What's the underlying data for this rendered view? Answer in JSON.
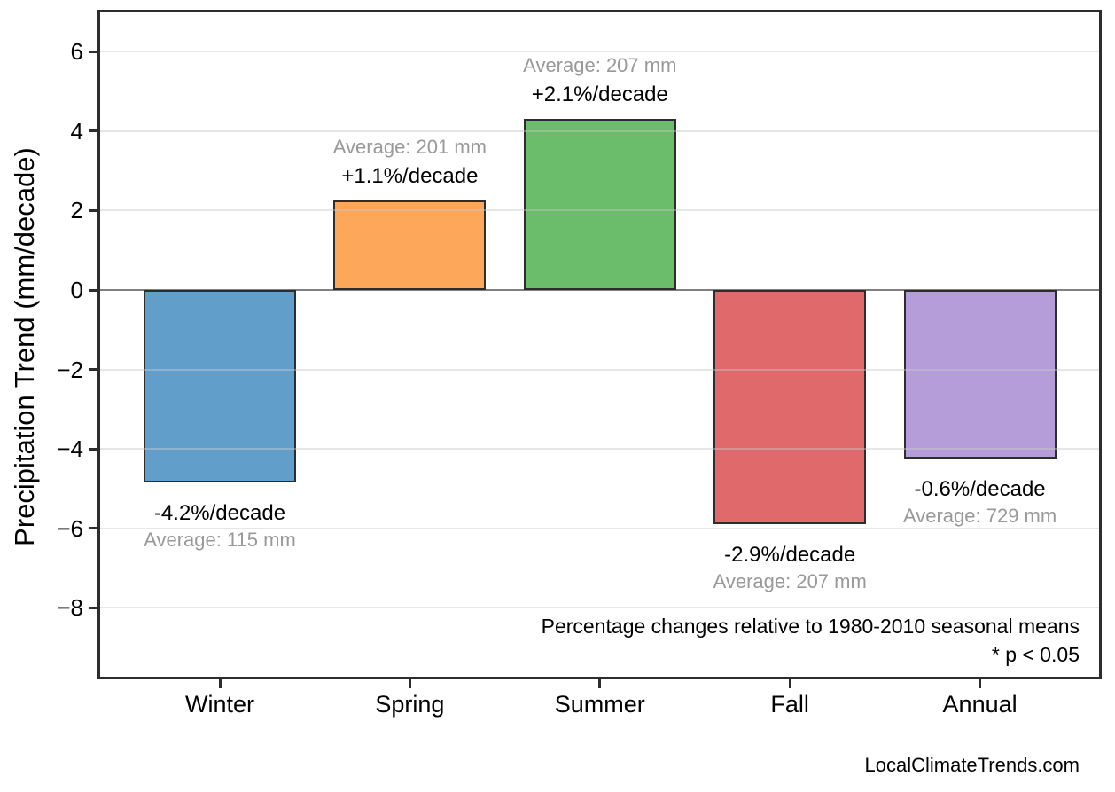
{
  "chart_data": {
    "type": "bar",
    "categories": [
      "Winter",
      "Spring",
      "Summer",
      "Fall",
      "Annual"
    ],
    "values": [
      -4.85,
      2.25,
      4.3,
      -5.9,
      -4.25
    ],
    "series_name": "Precipitation trend (mm/decade)",
    "bar_labels": [
      {
        "pct": "-4.2%/decade",
        "avg": "Average: 115 mm"
      },
      {
        "pct": "+1.1%/decade",
        "avg": "Average: 201 mm"
      },
      {
        "pct": "+2.1%/decade",
        "avg": "Average: 207 mm"
      },
      {
        "pct": "-2.9%/decade",
        "avg": "Average: 207 mm"
      },
      {
        "pct": "-0.6%/decade",
        "avg": "Average: 729 mm"
      }
    ],
    "bar_colors": [
      "#619eca",
      "#fda75a",
      "#6bbc6b",
      "#e0696b",
      "#b49dd9"
    ],
    "bar_edge_color": "#2d2d2d",
    "title": "",
    "xlabel": "",
    "ylabel": "Precipitation Trend (mm/decade)",
    "yticks": [
      6,
      4,
      2,
      0,
      -2,
      -4,
      -6,
      -8
    ],
    "ylim": [
      -9.8,
      7.0
    ],
    "grid": "horizontal",
    "zero_line_color": "#808080",
    "grid_color": "#e6e6e6",
    "axis_color": "#2d2d2d",
    "gray_text_color": "#999999",
    "annotations": [
      "Percentage changes relative to 1980-2010 seasonal means",
      "* p < 0.05"
    ],
    "watermark": "LocalClimateTrends.com"
  }
}
